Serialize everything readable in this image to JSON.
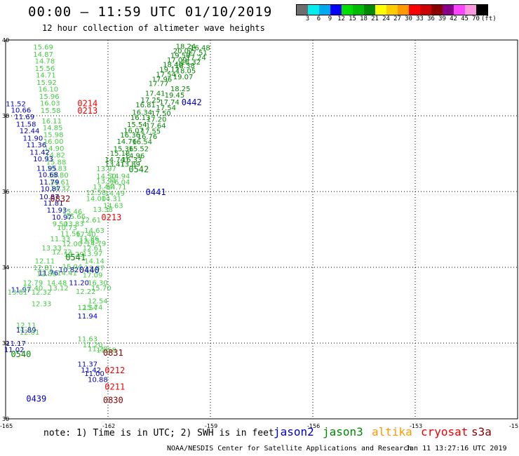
{
  "header": {
    "title": "00:00 – 11:59 UTC 01/10/2019",
    "subtitle": "12 hour collection of altimeter wave heights"
  },
  "legend": {
    "colors": [
      "#6e6e6e",
      "#00eeee",
      "#00aaee",
      "#0000ff",
      "#00dd00",
      "#00bb00",
      "#008800",
      "#ffff00",
      "#ffcc00",
      "#ff9900",
      "#ff0000",
      "#cc0000",
      "#880000",
      "#880088",
      "#ff44ff",
      "#ff99dd",
      "#000000"
    ],
    "labels": [
      "3",
      "6",
      "9",
      "12",
      "15",
      "18",
      "21",
      "24",
      "27",
      "30",
      "33",
      "36",
      "39",
      "42",
      "45",
      "70",
      "(ft)"
    ]
  },
  "axes": {
    "lat_labels": [
      "40",
      "38",
      "36",
      "34",
      "32",
      "30"
    ],
    "lon_labels": [
      "-165",
      "-162",
      "-159",
      "-156",
      "-153",
      "-15"
    ]
  },
  "footer": {
    "note": "note:  1) Time is in UTC; 2) SWH is in feet",
    "missions": [
      {
        "name": "jason2",
        "color": "#0000cc"
      },
      {
        "name": "jason3",
        "color": "#008800"
      },
      {
        "name": "altika",
        "color": "#ff9900"
      },
      {
        "name": "cryosat",
        "color": "#ee0000"
      },
      {
        "name": "s3a",
        "color": "#880000"
      }
    ],
    "credit": "NOAA/NESDIS Center for Satellite Applications and Research",
    "timestamp": "Jan 11 13:27:16 UTC 2019"
  },
  "colors": {
    "jason2": "#0000cc",
    "jason3": "#008800",
    "jason3_light": "#44cc44",
    "cryosat": "#ee0000",
    "s3a": "#880000"
  },
  "tracks": [
    {
      "id": "t1",
      "color": "#44cc44",
      "points": [
        [
          "15.69",
          -163.9,
          39.82
        ],
        [
          "14.87",
          -163.9,
          39.63
        ],
        [
          "14.78",
          -163.85,
          39.45
        ],
        [
          "15.56",
          -163.85,
          39.26
        ],
        [
          "14.71",
          -163.82,
          39.08
        ],
        [
          "15.92",
          -163.8,
          38.89
        ],
        [
          "16.10",
          -163.75,
          38.71
        ],
        [
          "15.96",
          -163.72,
          38.52
        ],
        [
          "16.03",
          -163.7,
          38.34
        ],
        [
          "15.58",
          -163.68,
          38.15
        ],
        [
          "16.11",
          -163.65,
          37.87
        ],
        [
          "14.85",
          -163.62,
          37.69
        ],
        [
          "15.98",
          -163.6,
          37.51
        ],
        [
          "16.00",
          -163.6,
          37.33
        ],
        [
          "14.90",
          -163.58,
          37.15
        ],
        [
          "14.82",
          -163.55,
          36.97
        ],
        [
          "15.88",
          -163.52,
          36.79
        ],
        [
          "15.83",
          -163.5,
          36.62
        ],
        [
          "15.80",
          -163.45,
          36.44
        ],
        [
          "14.61",
          -163.42,
          36.26
        ],
        [
          "14.32",
          -163.4,
          36.1
        ]
      ]
    },
    {
      "id": "t2",
      "color": "#008800",
      "points": [
        [
          "18.24",
          -159.72,
          39.84
        ],
        [
          "16.48",
          -159.3,
          39.81
        ],
        [
          "20.02",
          -159.8,
          39.72
        ],
        [
          "17.51",
          -159.38,
          39.68
        ],
        [
          "19.50",
          -159.88,
          39.6
        ],
        [
          "17.24",
          -159.42,
          39.55
        ],
        [
          "18.40",
          -160.1,
          39.36
        ],
        [
          "18.32",
          -159.58,
          39.43
        ],
        [
          "17.09",
          -159.98,
          39.48
        ],
        [
          "18.38",
          -159.75,
          39.33
        ],
        [
          "18.05",
          -159.72,
          39.19
        ],
        [
          "19.12",
          -160.2,
          39.23
        ],
        [
          "17.54",
          -160.3,
          39.1
        ],
        [
          "19.07",
          -159.8,
          39.04
        ],
        [
          "17.96",
          -160.42,
          38.97
        ],
        [
          "18.25",
          -159.88,
          38.72
        ],
        [
          "17.77",
          -160.52,
          38.86
        ],
        [
          "17.41",
          -160.62,
          38.6
        ],
        [
          "19.45",
          -160.05,
          38.56
        ],
        [
          "17.25",
          -160.75,
          38.43
        ],
        [
          "17.74",
          -160.2,
          38.37
        ],
        [
          "16.81",
          -160.9,
          38.3
        ],
        [
          "17.54",
          -160.3,
          38.22
        ],
        [
          "16.34",
          -161.0,
          38.1
        ],
        [
          "17.50",
          -160.45,
          38.07
        ],
        [
          "16.13",
          -161.05,
          37.96
        ],
        [
          "17.20",
          -160.58,
          37.92
        ],
        [
          "15.54",
          -161.15,
          37.78
        ],
        [
          "17.64",
          -160.6,
          37.75
        ],
        [
          "16.07",
          -161.25,
          37.62
        ],
        [
          "17.55",
          -160.75,
          37.6
        ],
        [
          "16.36",
          -161.35,
          37.5
        ],
        [
          "16.76",
          -160.85,
          37.46
        ],
        [
          "14.76",
          -161.45,
          37.33
        ],
        [
          "16.54",
          -161.0,
          37.32
        ],
        [
          "15.36",
          -161.55,
          37.14
        ],
        [
          "15.52",
          -161.1,
          37.14
        ],
        [
          "15.18",
          -161.65,
          37.02
        ],
        [
          "14.96",
          -161.22,
          36.95
        ],
        [
          "14.74",
          -161.8,
          36.85
        ],
        [
          "16.33",
          -161.3,
          36.85
        ],
        [
          "13.41",
          -161.8,
          36.73
        ],
        [
          "13.89",
          -161.35,
          36.73
        ]
      ]
    },
    {
      "id": "t3",
      "color": "#0000cc",
      "points": [
        [
          "11.52",
          -164.7,
          38.32
        ],
        [
          "10.66",
          -164.55,
          38.16
        ],
        [
          "11.69",
          -164.45,
          37.98
        ],
        [
          "11.58",
          -164.4,
          37.79
        ],
        [
          "12.44",
          -164.3,
          37.61
        ],
        [
          "11.90",
          -164.2,
          37.42
        ],
        [
          "11.36",
          -164.1,
          37.24
        ],
        [
          "11.42",
          -164.0,
          37.05
        ],
        [
          "10.93",
          -163.9,
          36.87
        ],
        [
          "11.95",
          -163.8,
          36.62
        ],
        [
          "10.68",
          -163.75,
          36.45
        ],
        [
          "11.79",
          -163.72,
          36.26
        ],
        [
          "10.87",
          -163.68,
          36.08
        ],
        [
          "10.87",
          -163.72,
          35.87
        ],
        [
          "11.81",
          -163.6,
          35.7
        ],
        [
          "11.93",
          -163.5,
          35.52
        ],
        [
          "10.97",
          -163.35,
          35.33
        ],
        [
          "10.82",
          -163.15,
          33.94
        ],
        [
          "11.76",
          -163.75,
          33.86
        ],
        [
          "11.20",
          -162.85,
          33.6
        ],
        [
          "11.97",
          -164.55,
          33.42
        ],
        [
          "11.94",
          -162.6,
          32.72
        ],
        [
          "11.89",
          -164.4,
          32.35
        ],
        [
          "11.17",
          -164.7,
          32.0
        ],
        [
          "11.02",
          -164.75,
          31.83
        ]
      ]
    },
    {
      "id": "t4",
      "color": "#44cc44",
      "points": [
        [
          "13.97",
          -162.05,
          36.61
        ],
        [
          "14.50",
          -162.05,
          36.42
        ],
        [
          "14.94",
          -161.65,
          36.42
        ],
        [
          "13.94",
          -162.05,
          36.29
        ],
        [
          "16.04",
          -161.65,
          36.26
        ],
        [
          "14.71",
          -161.75,
          36.13
        ],
        [
          "13.44",
          -162.15,
          36.13
        ],
        [
          "12.58",
          -162.35,
          35.98
        ],
        [
          "14.49",
          -161.8,
          35.96
        ],
        [
          "14.00",
          -162.35,
          35.82
        ],
        [
          "14.31",
          -161.9,
          35.82
        ],
        [
          "14.63",
          -161.85,
          35.64
        ],
        [
          "13.38",
          -162.15,
          35.54
        ],
        [
          "15.46",
          -163.05,
          35.48
        ],
        [
          "15.66",
          -162.95,
          35.35
        ],
        [
          "12.61",
          -162.5,
          35.26
        ],
        [
          "9.50",
          -163.4,
          35.16
        ],
        [
          "13.83",
          -163.0,
          35.16
        ],
        [
          "10.73",
          -163.2,
          35.06
        ],
        [
          "14.63",
          -162.4,
          34.98
        ],
        [
          "11.56",
          -163.1,
          34.9
        ],
        [
          "17.40",
          -162.65,
          34.88
        ],
        [
          "11.86",
          -162.55,
          34.77
        ],
        [
          "11.33",
          -163.4,
          34.76
        ],
        [
          "12.63",
          -162.55,
          34.7
        ],
        [
          "12.00",
          -163.05,
          34.63
        ],
        [
          "14.79",
          -162.35,
          34.64
        ],
        [
          "13.33",
          -163.65,
          34.52
        ],
        [
          "12.61",
          -162.45,
          34.52
        ],
        [
          "12.72",
          -163.35,
          34.42
        ],
        [
          "13.97",
          -162.45,
          34.37
        ],
        [
          "13.29",
          -163.0,
          34.35
        ],
        [
          "12.11",
          -163.85,
          34.18
        ],
        [
          "14.14",
          -162.4,
          34.18
        ],
        [
          "12.81",
          -163.9,
          34.0
        ],
        [
          "15.04",
          -163.05,
          34.03
        ],
        [
          "13.87",
          -162.4,
          33.99
        ],
        [
          "12.86",
          -163.8,
          33.84
        ],
        [
          "14.41",
          -163.2,
          33.86
        ],
        [
          "17.09",
          -162.45,
          33.81
        ],
        [
          "12.79",
          -164.2,
          33.6
        ],
        [
          "14.48",
          -163.5,
          33.6
        ],
        [
          "16.30",
          -162.3,
          33.6
        ],
        [
          "12.40",
          -164.2,
          33.46
        ],
        [
          "13.12",
          -163.45,
          33.46
        ],
        [
          "15.70",
          -162.2,
          33.46
        ],
        [
          "13.81",
          -164.65,
          33.35
        ],
        [
          "12.32",
          -163.95,
          33.35
        ],
        [
          "12.22",
          -162.65,
          33.37
        ],
        [
          "12.33",
          -163.95,
          33.05
        ],
        [
          "12.54",
          -162.3,
          33.12
        ],
        [
          "15.74",
          -162.45,
          32.95
        ],
        [
          "12.54",
          -162.6,
          32.94
        ],
        [
          "12.11",
          -164.4,
          32.48
        ],
        [
          "12.01",
          -164.3,
          32.3
        ],
        [
          "11.63",
          -162.6,
          32.12
        ],
        [
          "11.20",
          -162.45,
          31.96
        ],
        [
          "11.28",
          -162.3,
          31.86
        ],
        [
          "11.58",
          -162.05,
          31.82
        ]
      ]
    },
    {
      "id": "t5",
      "color": "#0000cc",
      "points": [
        [
          "11.37",
          -162.6,
          31.45
        ],
        [
          "11.42",
          -162.5,
          31.3
        ],
        [
          "11.00",
          -162.4,
          31.2
        ],
        [
          "10.88",
          -162.3,
          31.05
        ]
      ]
    }
  ],
  "passes": [
    {
      "label": "0214",
      "color": "#ee0000",
      "lon": -162.6,
      "lat": 38.34
    },
    {
      "label": "0213",
      "color": "#ee0000",
      "lon": -162.6,
      "lat": 38.15
    },
    {
      "label": "0442",
      "color": "#0000cc",
      "lon": -159.55,
      "lat": 38.37
    },
    {
      "label": "0542",
      "color": "#008800",
      "lon": -161.1,
      "lat": 36.6
    },
    {
      "label": "0441",
      "color": "#0000cc",
      "lon": -160.6,
      "lat": 36.0
    },
    {
      "label": "0832",
      "color": "#880000",
      "lon": -163.4,
      "lat": 35.82
    },
    {
      "label": "0213",
      "color": "#ee0000",
      "lon": -161.9,
      "lat": 35.33
    },
    {
      "label": "0541",
      "color": "#008800",
      "lon": -162.95,
      "lat": 34.28
    },
    {
      "label": "0440",
      "color": "#0000cc",
      "lon": -162.55,
      "lat": 33.94
    },
    {
      "label": "0540",
      "color": "#008800",
      "lon": -164.55,
      "lat": 31.72
    },
    {
      "label": "0831",
      "color": "#880000",
      "lon": -161.85,
      "lat": 31.76
    },
    {
      "label": "0212",
      "color": "#ee0000",
      "lon": -161.8,
      "lat": 31.3
    },
    {
      "label": "0211",
      "color": "#ee0000",
      "lon": -161.8,
      "lat": 30.86
    },
    {
      "label": "0439",
      "color": "#0000cc",
      "lon": -164.1,
      "lat": 30.55
    },
    {
      "label": "0830",
      "color": "#880000",
      "lon": -161.85,
      "lat": 30.51
    }
  ]
}
